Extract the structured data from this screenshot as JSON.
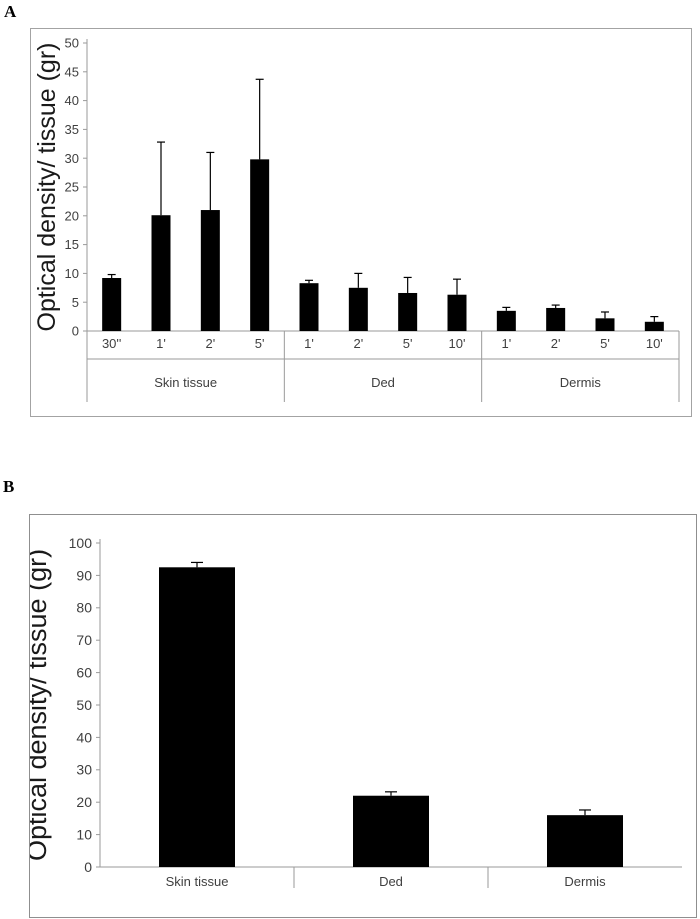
{
  "colors": {
    "bar": "#000000",
    "axis": "#9a9a9a",
    "tick_text": "#3f3f3f",
    "ylabel_text": "#1a1a1a",
    "box_border": "#a3a3a3"
  },
  "chart_data": [
    {
      "panel": "A",
      "type": "bar",
      "title": "",
      "xlabel": "",
      "ylabel": "Optical density/ tissue (gr)",
      "ylim": [
        0,
        50
      ],
      "ytick_step": 5,
      "grid": false,
      "legend": false,
      "error_bars": "plus",
      "groups": [
        {
          "label": "Skin tissue",
          "categories": [
            "30''",
            "1'",
            "2'",
            "5'"
          ],
          "values": [
            9.2,
            20.1,
            21.0,
            29.8
          ],
          "errors": [
            0.6,
            12.7,
            10.0,
            13.9
          ]
        },
        {
          "label": "Ded",
          "categories": [
            "1'",
            "2'",
            "5'",
            "10'"
          ],
          "values": [
            8.3,
            7.5,
            6.6,
            6.3
          ],
          "errors": [
            0.5,
            2.5,
            2.7,
            2.7
          ]
        },
        {
          "label": "Dermis",
          "categories": [
            "1'",
            "2'",
            "5'",
            "10'"
          ],
          "values": [
            3.5,
            4.0,
            2.2,
            1.6
          ],
          "errors": [
            0.6,
            0.5,
            1.1,
            0.9
          ]
        }
      ]
    },
    {
      "panel": "B",
      "type": "bar",
      "title": "",
      "xlabel": "",
      "ylabel": "Optical density/ tissue (gr)",
      "ylim": [
        0,
        100
      ],
      "ytick_step": 10,
      "grid": false,
      "legend": false,
      "error_bars": "plus",
      "groups": [
        {
          "label": "",
          "categories": [
            "Skin tissue",
            "Ded",
            "Dermis"
          ],
          "values": [
            92.5,
            22.0,
            16.0
          ],
          "errors": [
            1.5,
            1.2,
            1.6
          ]
        }
      ]
    }
  ]
}
